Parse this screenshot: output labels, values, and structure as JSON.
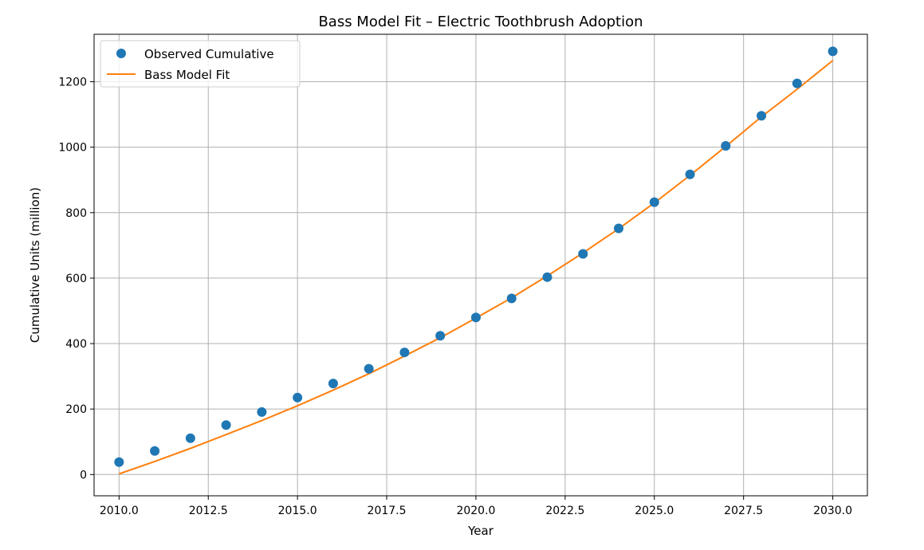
{
  "chart_data": {
    "type": "line",
    "title": "Bass Model Fit – Electric Toothbrush Adoption",
    "xlabel": "Year",
    "ylabel": "Cumulative Units (million)",
    "xlim": [
      2009.3,
      2030.97
    ],
    "ylim": [
      -65,
      1345
    ],
    "xticks": [
      2010.0,
      2012.5,
      2015.0,
      2017.5,
      2020.0,
      2022.5,
      2025.0,
      2027.5,
      2030.0
    ],
    "xtick_labels": [
      "2010.0",
      "2012.5",
      "2015.0",
      "2017.5",
      "2020.0",
      "2022.5",
      "2025.0",
      "2027.5",
      "2030.0"
    ],
    "yticks": [
      0,
      200,
      400,
      600,
      800,
      1000,
      1200
    ],
    "ytick_labels": [
      "0",
      "200",
      "400",
      "600",
      "800",
      "1000",
      "1200"
    ],
    "grid": true,
    "legend_position": "top-left",
    "series": [
      {
        "name": "Observed Cumulative",
        "kind": "scatter",
        "color": "#1f77b4",
        "x": [
          2010,
          2011,
          2012,
          2013,
          2014,
          2015,
          2016,
          2017,
          2018,
          2019,
          2020,
          2021,
          2022,
          2023,
          2024,
          2025,
          2026,
          2027,
          2028,
          2029,
          2030
        ],
        "y": [
          38,
          72,
          111,
          151,
          191,
          235,
          278,
          323,
          373,
          424,
          480,
          538,
          603,
          674,
          752,
          832,
          917,
          1004,
          1096,
          1195,
          1293
        ]
      },
      {
        "name": "Bass Model Fit",
        "kind": "line",
        "color": "#ff7f0e",
        "x": [
          2010,
          2011,
          2012,
          2013,
          2014,
          2015,
          2016,
          2017,
          2018,
          2019,
          2020,
          2021,
          2022,
          2023,
          2024,
          2025,
          2026,
          2027,
          2028,
          2029,
          2030
        ],
        "y": [
          2,
          40,
          80,
          122,
          165,
          210,
          258,
          308,
          362,
          418,
          478,
          540,
          607,
          677,
          751,
          830,
          914,
          1002,
          1093,
          1177,
          1265
        ]
      }
    ]
  }
}
